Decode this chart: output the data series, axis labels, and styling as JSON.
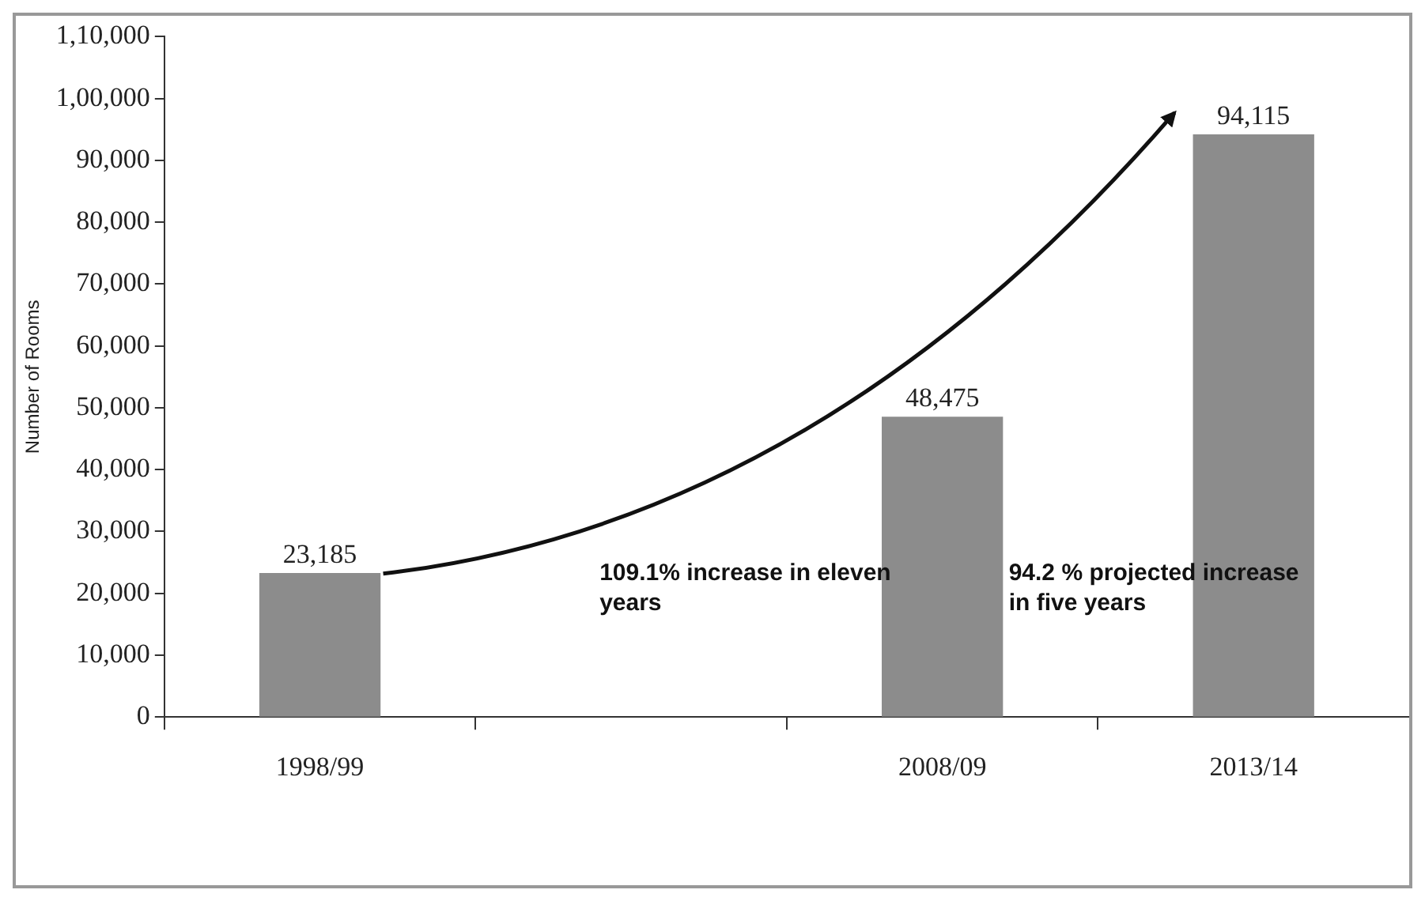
{
  "chart_data": {
    "type": "bar",
    "ylabel": "Number of Rooms",
    "categories": [
      null,
      null,
      "1998/99",
      null,
      null,
      null,
      null,
      null,
      null,
      null,
      null,
      null,
      "2008/09",
      null,
      null,
      null,
      null,
      "2013/14",
      null,
      null
    ],
    "values": [
      null,
      null,
      23185,
      null,
      null,
      null,
      null,
      null,
      null,
      null,
      null,
      null,
      48475,
      null,
      null,
      null,
      null,
      94115,
      null,
      null
    ],
    "color": "#8c8c8c",
    "ylim": [
      0,
      110000
    ],
    "yticks": [
      {
        "value": 0,
        "label": "0"
      },
      {
        "value": 10000,
        "label": "10,000"
      },
      {
        "value": 20000,
        "label": "20,000"
      },
      {
        "value": 30000,
        "label": "30,000"
      },
      {
        "value": 40000,
        "label": "40,000"
      },
      {
        "value": 50000,
        "label": "50,000"
      },
      {
        "value": 60000,
        "label": "60,000"
      },
      {
        "value": 70000,
        "label": "70,000"
      },
      {
        "value": 80000,
        "label": "80,000"
      },
      {
        "value": 90000,
        "label": "90,000"
      },
      {
        "value": 100000,
        "label": "1,00,000"
      },
      {
        "value": 110000,
        "label": "1,10,000"
      }
    ],
    "value_labels": [
      null,
      null,
      "23,185",
      null,
      null,
      null,
      null,
      null,
      null,
      null,
      null,
      null,
      "48,475",
      null,
      null,
      null,
      null,
      "94,115",
      null,
      null
    ],
    "grid": false,
    "legend": false,
    "annotations": [
      "109.1% increase in eleven years",
      "94.2 % projected increase in five years"
    ]
  }
}
